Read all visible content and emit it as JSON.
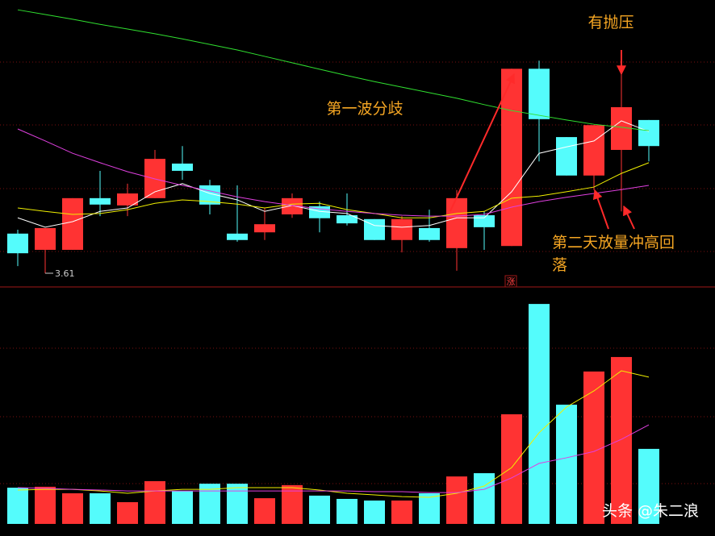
{
  "chart_data": [
    {
      "type": "candlestick",
      "ylim": [
        3.58,
        4.25
      ],
      "up_color": "#ff3333",
      "down_color": "#54fcfc",
      "open": [
        3.703,
        3.665,
        3.665,
        3.786,
        3.769,
        3.786,
        3.867,
        3.816,
        3.703,
        3.706,
        3.748,
        3.767,
        3.746,
        3.737,
        3.688,
        3.716,
        3.669,
        3.746,
        3.674,
        4.089,
        3.929,
        3.839,
        3.899,
        3.969
      ],
      "high": [
        3.712,
        3.716,
        3.786,
        3.85,
        3.82,
        3.899,
        3.908,
        3.829,
        3.816,
        3.763,
        3.797,
        3.778,
        3.797,
        3.737,
        3.744,
        3.759,
        3.805,
        3.755,
        4.089,
        4.108,
        3.929,
        3.957,
        4.127,
        3.969
      ],
      "low": [
        3.627,
        3.61,
        3.665,
        3.744,
        3.744,
        3.786,
        3.829,
        3.748,
        3.684,
        3.688,
        3.74,
        3.706,
        3.722,
        3.688,
        3.659,
        3.684,
        3.616,
        3.665,
        3.674,
        3.872,
        3.839,
        3.805,
        3.755,
        3.872
      ],
      "close": [
        3.657,
        3.716,
        3.786,
        3.771,
        3.797,
        3.878,
        3.85,
        3.771,
        3.688,
        3.725,
        3.786,
        3.739,
        3.727,
        3.688,
        3.737,
        3.688,
        3.786,
        3.718,
        4.089,
        3.971,
        3.839,
        3.957,
        3.999,
        3.908
      ],
      "series": [
        {
          "color": "#ffffff",
          "values": [
            3.74,
            3.718,
            3.731,
            3.755,
            3.763,
            3.801,
            3.82,
            3.797,
            3.782,
            3.755,
            3.769,
            3.755,
            3.75,
            3.722,
            3.718,
            3.722,
            3.74,
            3.74,
            3.801,
            3.891,
            3.906,
            3.92,
            3.967,
            3.942
          ]
        },
        {
          "color": "#f0f000",
          "values": [
            3.763,
            3.755,
            3.748,
            3.75,
            3.759,
            3.774,
            3.782,
            3.778,
            3.772,
            3.763,
            3.772,
            3.774,
            3.759,
            3.75,
            3.74,
            3.74,
            3.75,
            3.755,
            3.786,
            3.791,
            3.801,
            3.812,
            3.844,
            3.869
          ]
        },
        {
          "color": "#e040e0",
          "values": [
            3.948,
            3.92,
            3.891,
            3.869,
            3.848,
            3.831,
            3.816,
            3.803,
            3.789,
            3.778,
            3.769,
            3.761,
            3.755,
            3.75,
            3.746,
            3.744,
            3.744,
            3.748,
            3.765,
            3.778,
            3.788,
            3.797,
            3.806,
            3.816
          ]
        },
        {
          "color": "#30e030",
          "values": [
            4.227,
            4.216,
            4.205,
            4.193,
            4.182,
            4.171,
            4.159,
            4.146,
            4.133,
            4.118,
            4.103,
            4.088,
            4.073,
            4.059,
            4.046,
            4.033,
            4.02,
            4.005,
            3.991,
            3.98,
            3.969,
            3.959,
            3.952,
            3.944
          ]
        }
      ],
      "annotations": [
        {
          "lines": [
            "有抛压"
          ]
        },
        {
          "lines": [
            "第一波分歧"
          ]
        },
        {
          "lines": [
            "第二天放量冲高回",
            "落"
          ]
        }
      ],
      "limit_up_marker": "涨"
    },
    {
      "type": "bar",
      "ylim": [
        0,
        100
      ],
      "values": [
        15.5,
        15.9,
        13.1,
        13.1,
        9.3,
        18.3,
        14.1,
        17.2,
        17.2,
        11.0,
        16.6,
        12.1,
        10.7,
        10.0,
        10.0,
        13.1,
        20.3,
        21.7,
        46.9,
        94.1,
        51.0,
        65.2,
        71.4,
        32.1
      ],
      "series": [
        {
          "color": "#f0f000",
          "values": [
            14.5,
            14.8,
            14.8,
            14.1,
            13.1,
            14.1,
            14.8,
            14.8,
            15.5,
            15.5,
            15.5,
            14.5,
            13.1,
            12.4,
            11.7,
            11.4,
            13.1,
            16.2,
            24.1,
            39.0,
            50.0,
            56.9,
            65.5,
            62.8
          ]
        },
        {
          "color": "#e040e0",
          "values": [
            15.5,
            15.2,
            14.8,
            14.5,
            14.1,
            14.1,
            14.1,
            14.1,
            14.1,
            14.1,
            14.1,
            14.1,
            14.1,
            13.8,
            13.8,
            13.4,
            13.4,
            14.8,
            19.7,
            25.9,
            28.3,
            31.0,
            36.2,
            42.4
          ]
        }
      ]
    }
  ],
  "watermark": "头条 @朱二浪"
}
